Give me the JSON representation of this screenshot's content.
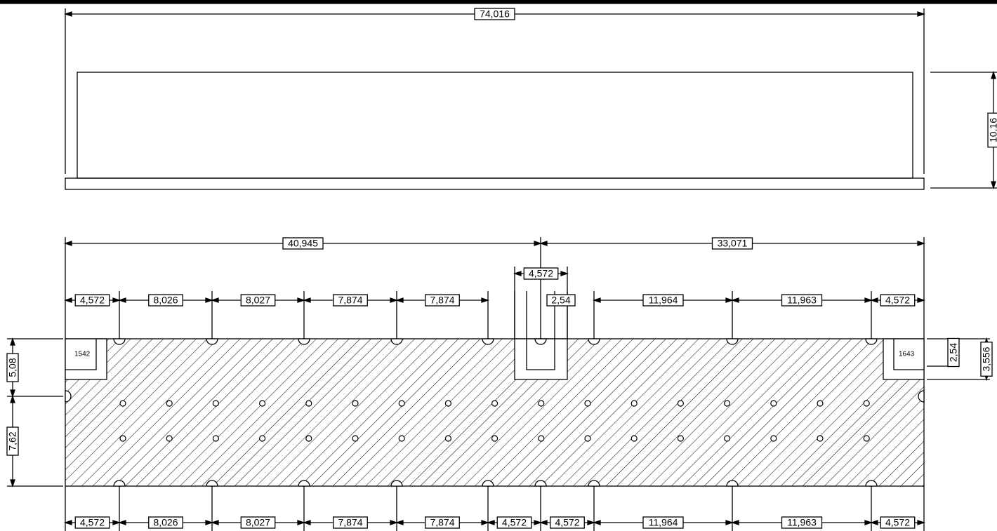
{
  "top_view": {
    "dimensions": [
      "74,016",
      "10,16"
    ]
  },
  "bottom_view": {
    "overall": [
      "40,945",
      "33,071"
    ],
    "top_row": [
      "4,572",
      "8,026",
      "8,027",
      "7,874",
      "7,874",
      "4,572",
      "2,54",
      "11,964",
      "11,963",
      "4,572"
    ],
    "bottom_row": [
      "4,572",
      "8,026",
      "8,027",
      "7,874",
      "7,874",
      "4,572",
      "4,572",
      "11,964",
      "11,963",
      "4,572"
    ],
    "left": [
      "5,08",
      "7,62"
    ],
    "right": [
      "2,54",
      "3,556"
    ],
    "part_labels": [
      "1542",
      "1643"
    ]
  }
}
